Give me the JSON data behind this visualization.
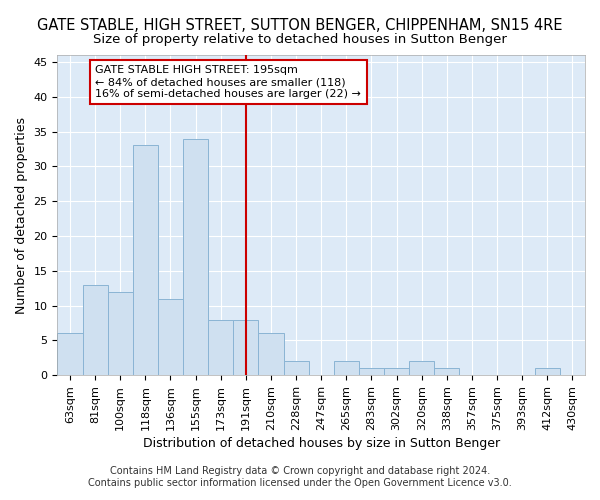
{
  "title": "GATE STABLE, HIGH STREET, SUTTON BENGER, CHIPPENHAM, SN15 4RE",
  "subtitle": "Size of property relative to detached houses in Sutton Benger",
  "xlabel": "Distribution of detached houses by size in Sutton Benger",
  "ylabel": "Number of detached properties",
  "categories": [
    "63sqm",
    "81sqm",
    "100sqm",
    "118sqm",
    "136sqm",
    "155sqm",
    "173sqm",
    "191sqm",
    "210sqm",
    "228sqm",
    "247sqm",
    "265sqm",
    "283sqm",
    "302sqm",
    "320sqm",
    "338sqm",
    "357sqm",
    "375sqm",
    "393sqm",
    "412sqm",
    "430sqm"
  ],
  "values": [
    6,
    13,
    12,
    33,
    11,
    34,
    8,
    8,
    6,
    2,
    0,
    2,
    1,
    1,
    2,
    1,
    0,
    0,
    0,
    1,
    0
  ],
  "bar_color": "#cfe0f0",
  "bar_edge_color": "#8ab4d4",
  "annotation_text": "GATE STABLE HIGH STREET: 195sqm\n← 84% of detached houses are smaller (118)\n16% of semi-detached houses are larger (22) →",
  "vline_color": "#cc0000",
  "box_edge_color": "#cc0000",
  "vline_index": 7,
  "ylim": [
    0,
    46
  ],
  "yticks": [
    0,
    5,
    10,
    15,
    20,
    25,
    30,
    35,
    40,
    45
  ],
  "footer": "Contains HM Land Registry data © Crown copyright and database right 2024.\nContains public sector information licensed under the Open Government Licence v3.0.",
  "fig_bg_color": "#ffffff",
  "plot_bg_color": "#ddeaf7",
  "grid_color": "#ffffff",
  "title_fontsize": 10.5,
  "subtitle_fontsize": 9.5,
  "axis_label_fontsize": 9,
  "tick_fontsize": 8,
  "annotation_fontsize": 8,
  "footer_fontsize": 7
}
